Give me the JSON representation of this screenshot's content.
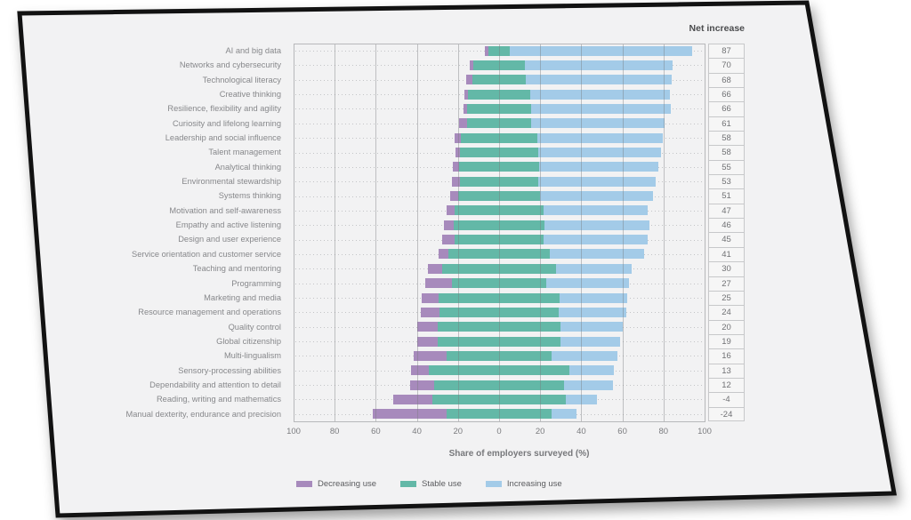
{
  "page": {
    "sheet_fill": "#f2f2f3",
    "frame_color": "#121212"
  },
  "chart_data": {
    "type": "bar",
    "variant": "horizontal-diverging-stacked",
    "net_column_header": "Net increase",
    "xlabel": "Share of employers surveyed (%)",
    "x_axis_tick_labels": [
      100,
      80,
      60,
      40,
      20,
      0,
      20,
      40,
      60,
      80,
      100
    ],
    "xlim": [
      -100,
      100
    ],
    "grid": true,
    "legend_position": "bottom",
    "series": [
      {
        "name": "Decreasing use",
        "key": "decreasing",
        "color": "#a78abc"
      },
      {
        "name": "Stable use",
        "key": "stable",
        "color": "#63b8a7"
      },
      {
        "name": "Increasing use",
        "key": "increasing",
        "color": "#a3cbe8"
      }
    ],
    "rows": [
      {
        "label": "AI and big data",
        "decreasing": 2,
        "stable": 10,
        "increasing": 89,
        "net_increase": 87
      },
      {
        "label": "Networks and cybersecurity",
        "decreasing": 2,
        "stable": 25,
        "increasing": 72,
        "net_increase": 70
      },
      {
        "label": "Technological literacy",
        "decreasing": 3,
        "stable": 26,
        "increasing": 71,
        "net_increase": 68
      },
      {
        "label": "Creative thinking",
        "decreasing": 2,
        "stable": 30,
        "increasing": 68,
        "net_increase": 66
      },
      {
        "label": "Resilience, flexibility and agility",
        "decreasing": 2,
        "stable": 31,
        "increasing": 68,
        "net_increase": 66
      },
      {
        "label": "Curiosity and lifelong learning",
        "decreasing": 4,
        "stable": 31,
        "increasing": 65,
        "net_increase": 61
      },
      {
        "label": "Leadership and social influence",
        "decreasing": 3,
        "stable": 37,
        "increasing": 61,
        "net_increase": 58
      },
      {
        "label": "Talent management",
        "decreasing": 2,
        "stable": 38,
        "increasing": 60,
        "net_increase": 58
      },
      {
        "label": "Analytical thinking",
        "decreasing": 3,
        "stable": 39,
        "increasing": 58,
        "net_increase": 55
      },
      {
        "label": "Environmental stewardship",
        "decreasing": 4,
        "stable": 38,
        "increasing": 57,
        "net_increase": 53
      },
      {
        "label": "Systems thinking",
        "decreasing": 4,
        "stable": 40,
        "increasing": 55,
        "net_increase": 51
      },
      {
        "label": "Motivation and self-awareness",
        "decreasing": 4,
        "stable": 43,
        "increasing": 51,
        "net_increase": 47
      },
      {
        "label": "Empathy and active listening",
        "decreasing": 5,
        "stable": 44,
        "increasing": 51,
        "net_increase": 46
      },
      {
        "label": "Design and user experience",
        "decreasing": 6,
        "stable": 43,
        "increasing": 51,
        "net_increase": 45
      },
      {
        "label": "Service orientation and customer service",
        "decreasing": 5,
        "stable": 49,
        "increasing": 46,
        "net_increase": 41
      },
      {
        "label": "Teaching and mentoring",
        "decreasing": 7,
        "stable": 55,
        "increasing": 37,
        "net_increase": 30
      },
      {
        "label": "Programming",
        "decreasing": 13,
        "stable": 46,
        "increasing": 40,
        "net_increase": 27
      },
      {
        "label": "Marketing and media",
        "decreasing": 8,
        "stable": 59,
        "increasing": 33,
        "net_increase": 25
      },
      {
        "label": "Resource management and operations",
        "decreasing": 9,
        "stable": 58,
        "increasing": 33,
        "net_increase": 24
      },
      {
        "label": "Quality control",
        "decreasing": 10,
        "stable": 60,
        "increasing": 30,
        "net_increase": 20
      },
      {
        "label": "Global citizenship",
        "decreasing": 10,
        "stable": 60,
        "increasing": 29,
        "net_increase": 19
      },
      {
        "label": "Multi-lingualism",
        "decreasing": 16,
        "stable": 51,
        "increasing": 32,
        "net_increase": 16
      },
      {
        "label": "Sensory-processing abilities",
        "decreasing": 9,
        "stable": 68,
        "increasing": 22,
        "net_increase": 13
      },
      {
        "label": "Dependability and attention to detail",
        "decreasing": 12,
        "stable": 63,
        "increasing": 24,
        "net_increase": 12
      },
      {
        "label": "Reading, writing and mathematics",
        "decreasing": 19,
        "stable": 65,
        "increasing": 15,
        "net_increase": -4
      },
      {
        "label": "Manual dexterity, endurance and precision",
        "decreasing": 36,
        "stable": 51,
        "increasing": 12,
        "net_increase": -24
      }
    ]
  }
}
